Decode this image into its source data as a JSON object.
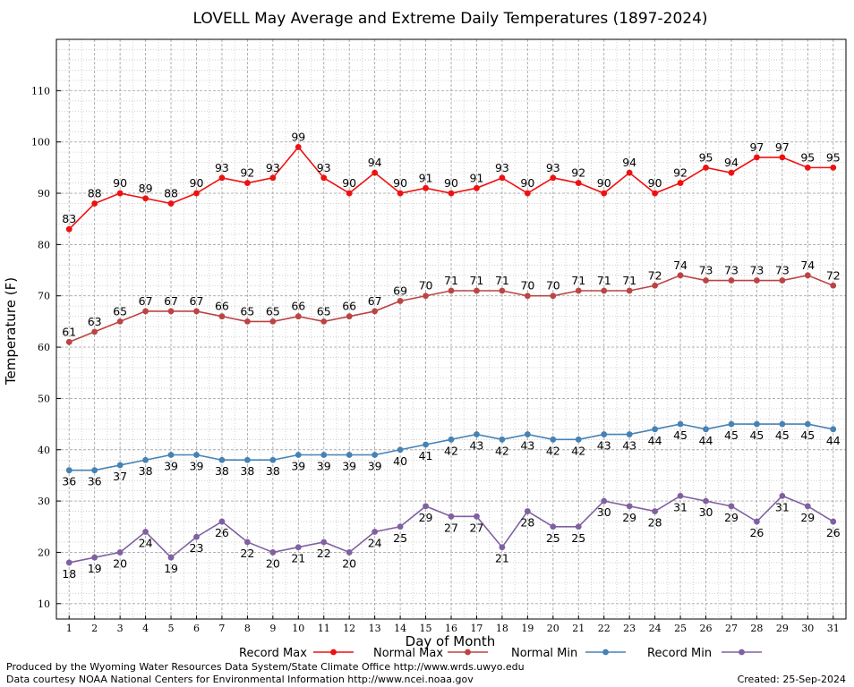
{
  "chart_data": {
    "type": "line",
    "title": "LOVELL May Average and Extreme Daily Temperatures (1897-2024)",
    "xlabel": "Day of Month",
    "ylabel": "Temperature (F)",
    "xlim": [
      0.5,
      31.5
    ],
    "ylim": [
      7,
      120
    ],
    "grid": true,
    "legend_position": "bottom",
    "x": [
      1,
      2,
      3,
      4,
      5,
      6,
      7,
      8,
      9,
      10,
      11,
      12,
      13,
      14,
      15,
      16,
      17,
      18,
      19,
      20,
      21,
      22,
      23,
      24,
      25,
      26,
      27,
      28,
      29,
      30,
      31
    ],
    "x_ticks": [
      "1",
      "2",
      "3",
      "4",
      "5",
      "6",
      "7",
      "8",
      "9",
      "10",
      "11",
      "12",
      "13",
      "14",
      "15",
      "16",
      "17",
      "18",
      "19",
      "20",
      "21",
      "22",
      "23",
      "24",
      "25",
      "26",
      "27",
      "28",
      "29",
      "30",
      "31"
    ],
    "y_ticks": [
      "10",
      "20",
      "30",
      "40",
      "50",
      "60",
      "70",
      "80",
      "90",
      "100",
      "110"
    ],
    "series": [
      {
        "name": "Record Max",
        "color": "#ee1111",
        "label_position": "above",
        "values": [
          83,
          88,
          90,
          89,
          88,
          90,
          93,
          92,
          93,
          99,
          93,
          90,
          94,
          90,
          91,
          90,
          91,
          93,
          90,
          93,
          92,
          90,
          94,
          90,
          92,
          95,
          94,
          97,
          97,
          95,
          95
        ]
      },
      {
        "name": "Normal Max",
        "color": "#bb4444",
        "label_position": "above",
        "values": [
          61,
          63,
          65,
          67,
          67,
          67,
          66,
          65,
          65,
          66,
          65,
          66,
          67,
          69,
          70,
          71,
          71,
          71,
          70,
          70,
          71,
          71,
          71,
          72,
          74,
          73,
          73,
          73,
          73,
          74,
          72
        ]
      },
      {
        "name": "Normal Min",
        "color": "#4682b4",
        "label_position": "below",
        "values": [
          36,
          36,
          37,
          38,
          39,
          39,
          38,
          38,
          38,
          39,
          39,
          39,
          39,
          40,
          41,
          42,
          43,
          42,
          43,
          42,
          42,
          43,
          43,
          44,
          45,
          44,
          45,
          45,
          45,
          45,
          44
        ]
      },
      {
        "name": "Record Min",
        "color": "#8060a0",
        "label_position": "below",
        "values": [
          18,
          19,
          20,
          24,
          19,
          23,
          26,
          22,
          20,
          21,
          22,
          20,
          24,
          25,
          29,
          27,
          27,
          21,
          28,
          25,
          25,
          30,
          29,
          28,
          31,
          30,
          29,
          26,
          31,
          29,
          26
        ]
      }
    ]
  },
  "footer": {
    "credit_line1": "Produced by the Wyoming Water Resources Data System/State Climate Office http://www.wrds.uwyo.edu",
    "credit_line2": "Data courtesy NOAA National Centers for Environmental Information http://www.ncei.noaa.gov",
    "created": "Created:  25-Sep-2024"
  }
}
